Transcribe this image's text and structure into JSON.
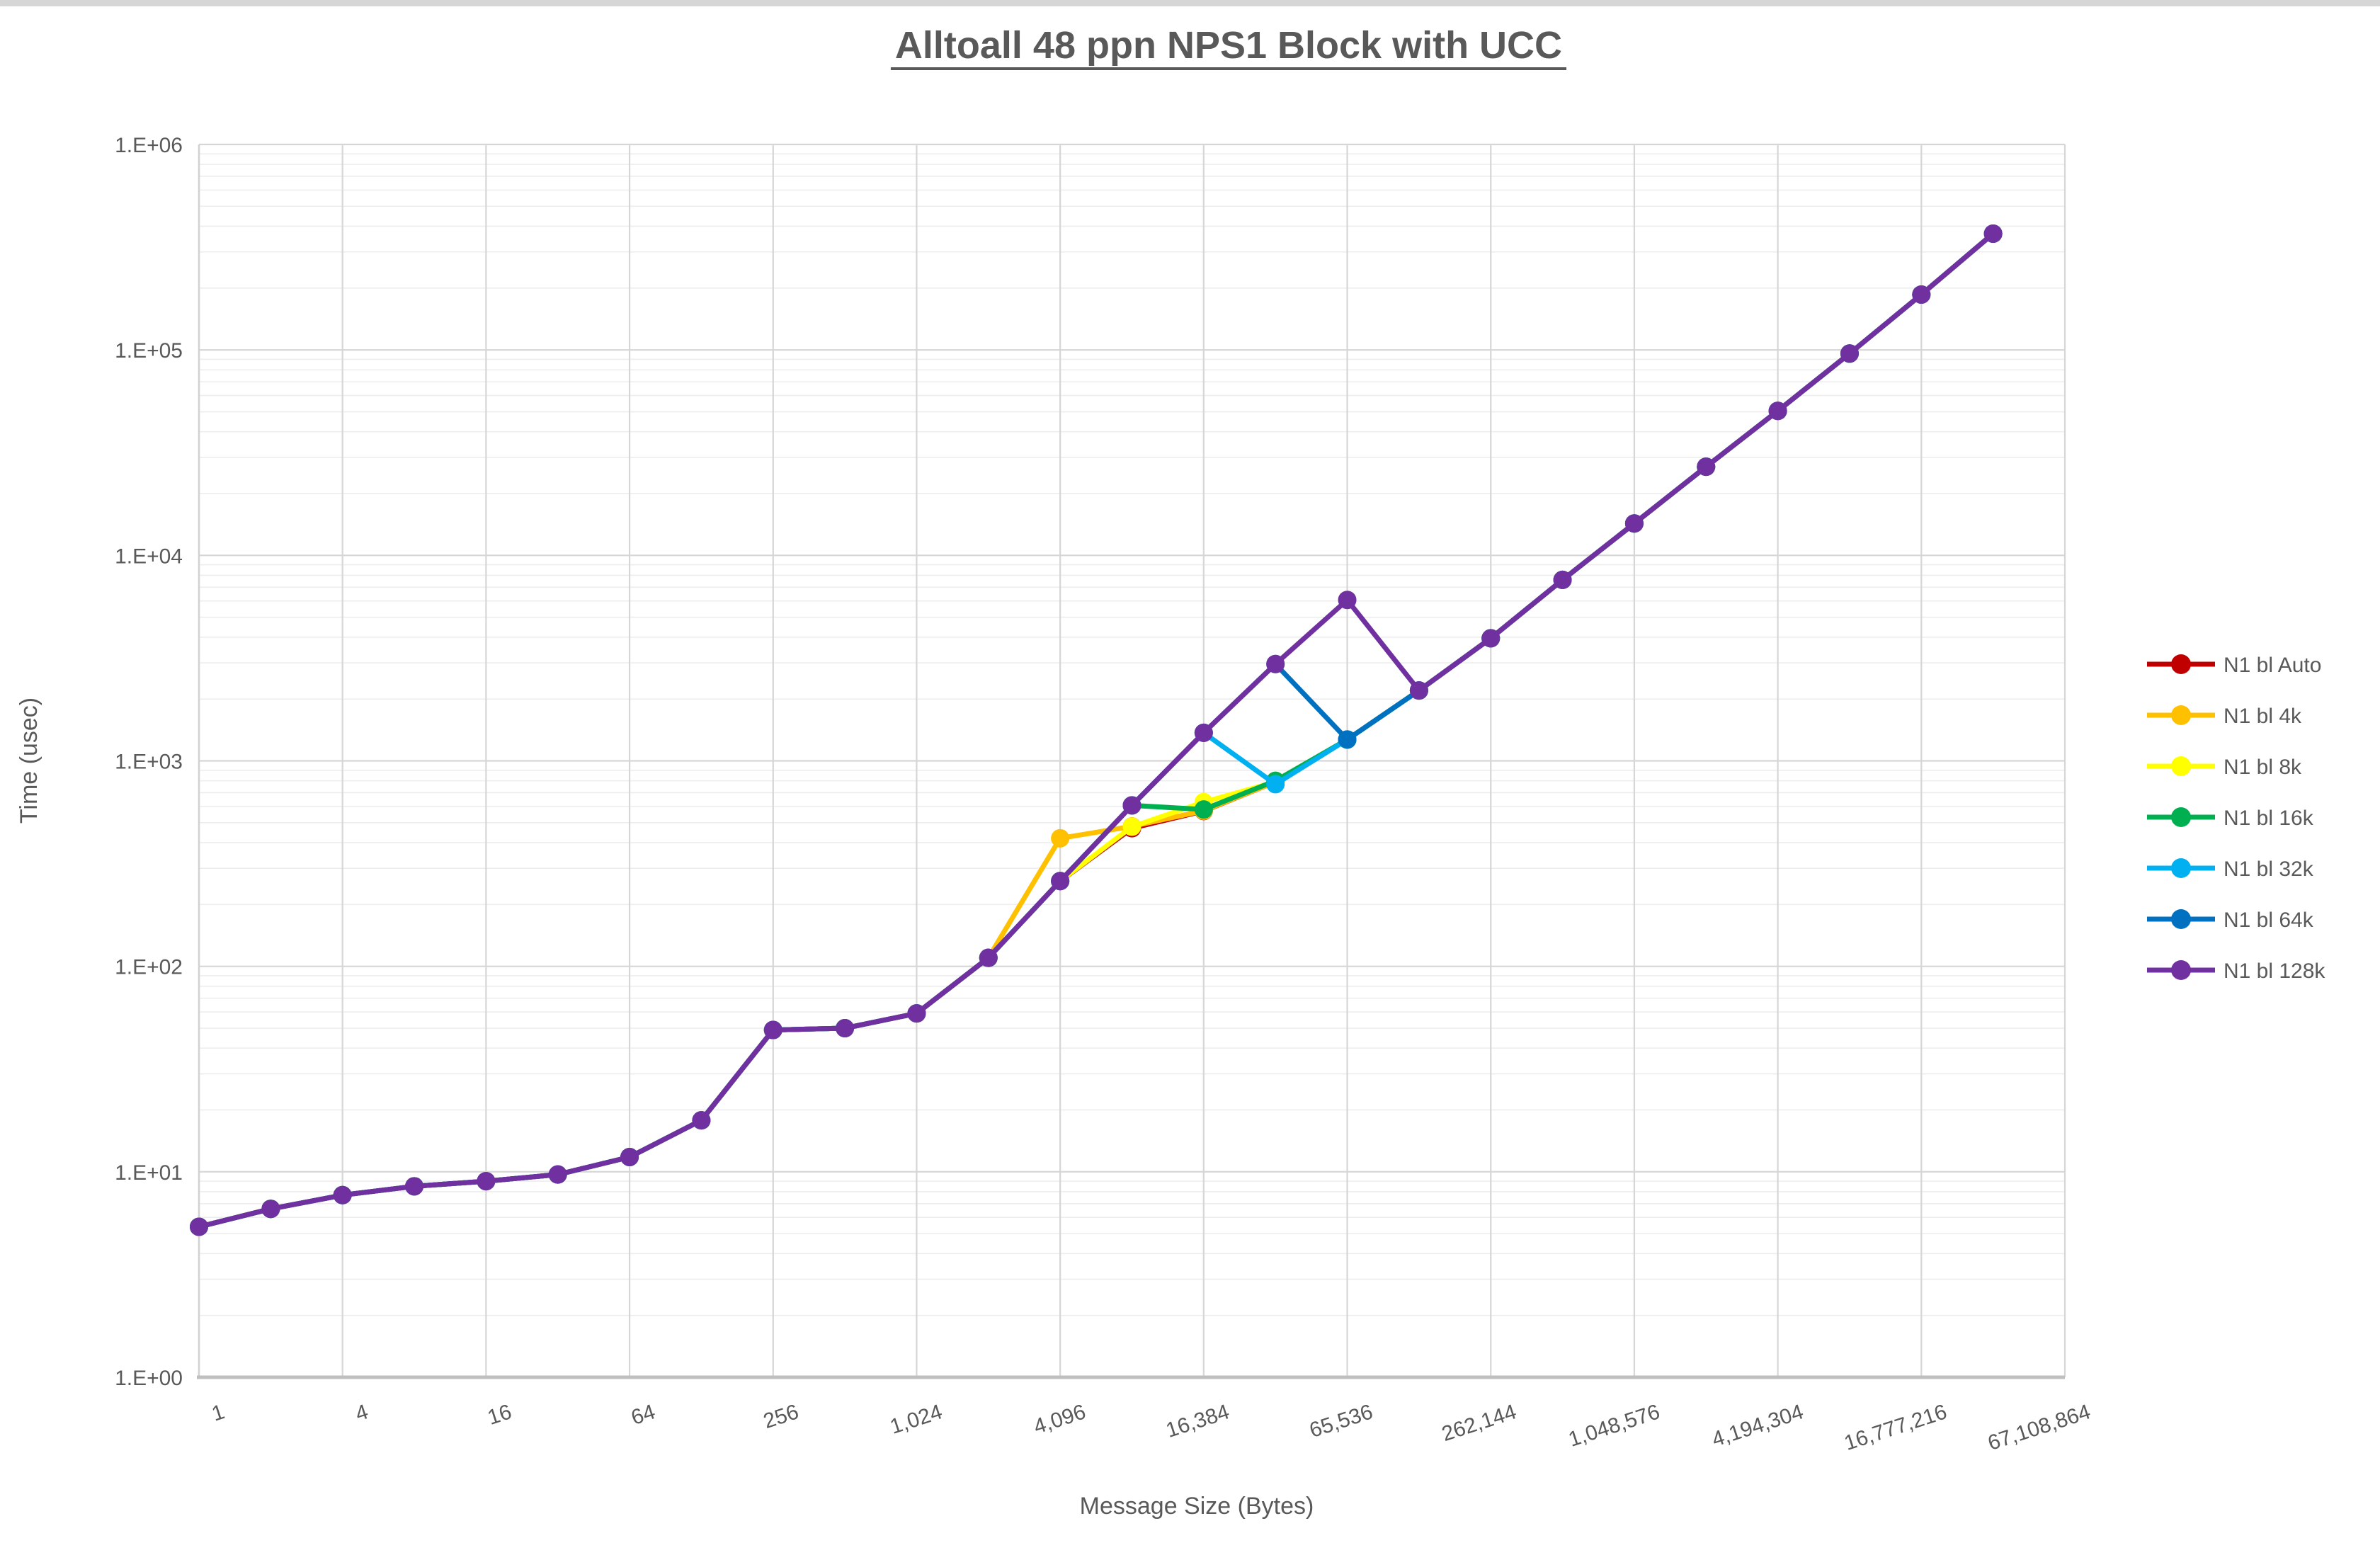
{
  "window": {
    "top_strip_color": "#D6D6D6"
  },
  "chart_data": {
    "type": "line",
    "title": "Alltoall 48 ppn NPS1 Block with UCC",
    "xlabel": "Message Size (Bytes)",
    "ylabel": "Time (usec)",
    "x_scale": "log2",
    "y_scale": "log10",
    "y_range": [
      1,
      1000000
    ],
    "x_range_bytes": [
      1,
      67108864
    ],
    "grid": true,
    "legend_position": "right",
    "text_color": "#595959",
    "y_axis_tick_labels": [
      "1.E+00",
      "1.E+01",
      "1.E+02",
      "1.E+03",
      "1.E+04",
      "1.E+05",
      "1.E+06"
    ],
    "x_axis_tick_labels": [
      "1",
      "4",
      "16",
      "64",
      "256",
      "1,024",
      "4,096",
      "16,384",
      "65,536",
      "262,144",
      "1,048,576",
      "4,194,304",
      "16,777,216",
      "67,108,864"
    ],
    "x_categories_bytes": [
      1,
      2,
      4,
      8,
      16,
      32,
      64,
      128,
      256,
      512,
      1024,
      2048,
      4096,
      8192,
      16384,
      32768,
      65536,
      131072,
      262144,
      524288,
      1048576,
      2097152,
      4194304,
      8388608,
      16777216,
      33554432
    ],
    "series": [
      {
        "name": "N1 bl Auto",
        "color": "#C00000",
        "values": [
          5.4,
          6.6,
          7.7,
          8.5,
          9,
          9.7,
          11.8,
          17.8,
          49,
          50,
          59,
          110,
          260,
          470,
          570,
          790,
          1270,
          2200,
          3950,
          7600,
          14300,
          27000,
          50500,
          96000,
          186000,
          368000
        ]
      },
      {
        "name": "N1 bl 4k",
        "color": "#FFC000",
        "values": [
          5.4,
          6.6,
          7.7,
          8.5,
          9,
          9.7,
          11.8,
          17.8,
          49,
          50,
          59,
          110,
          420,
          480,
          572,
          790,
          1270,
          2200,
          3950,
          7600,
          14300,
          27000,
          50500,
          96000,
          186000,
          368000
        ]
      },
      {
        "name": "N1 bl 8k",
        "color": "#FFFF00",
        "values": [
          5.4,
          6.6,
          7.7,
          8.5,
          9,
          9.7,
          11.8,
          17.8,
          49,
          50,
          59,
          110,
          260,
          478,
          630,
          790,
          1270,
          2200,
          3950,
          7600,
          14300,
          27000,
          50500,
          96000,
          186000,
          368000
        ]
      },
      {
        "name": "N1 bl 16k",
        "color": "#00B050",
        "values": [
          5.4,
          6.6,
          7.7,
          8.5,
          9,
          9.7,
          11.8,
          17.8,
          49,
          50,
          59,
          110,
          260,
          607,
          580,
          800,
          1270,
          2200,
          3950,
          7600,
          14300,
          27000,
          50500,
          96000,
          186000,
          368000
        ]
      },
      {
        "name": "N1 bl 32k",
        "color": "#00B0F0",
        "values": [
          5.4,
          6.6,
          7.7,
          8.5,
          9,
          9.7,
          11.8,
          17.8,
          49,
          50,
          59,
          110,
          260,
          607,
          1370,
          770,
          1270,
          2200,
          3950,
          7600,
          14300,
          27000,
          50500,
          96000,
          186000,
          368000
        ]
      },
      {
        "name": "N1 bl 64k",
        "color": "#0070C0",
        "values": [
          5.4,
          6.6,
          7.7,
          8.5,
          9,
          9.7,
          11.8,
          17.8,
          49,
          50,
          59,
          110,
          260,
          607,
          1370,
          2960,
          1270,
          2200,
          3950,
          7600,
          14300,
          27000,
          50500,
          96000,
          186000,
          368000
        ]
      },
      {
        "name": "N1 bl 128k",
        "color": "#7030A0",
        "values": [
          5.4,
          6.6,
          7.7,
          8.5,
          9,
          9.7,
          11.8,
          17.8,
          49,
          50,
          59,
          110,
          260,
          607,
          1370,
          2960,
          6070,
          2200,
          3950,
          7600,
          14300,
          27000,
          50500,
          96000,
          186000,
          368000
        ]
      }
    ]
  }
}
